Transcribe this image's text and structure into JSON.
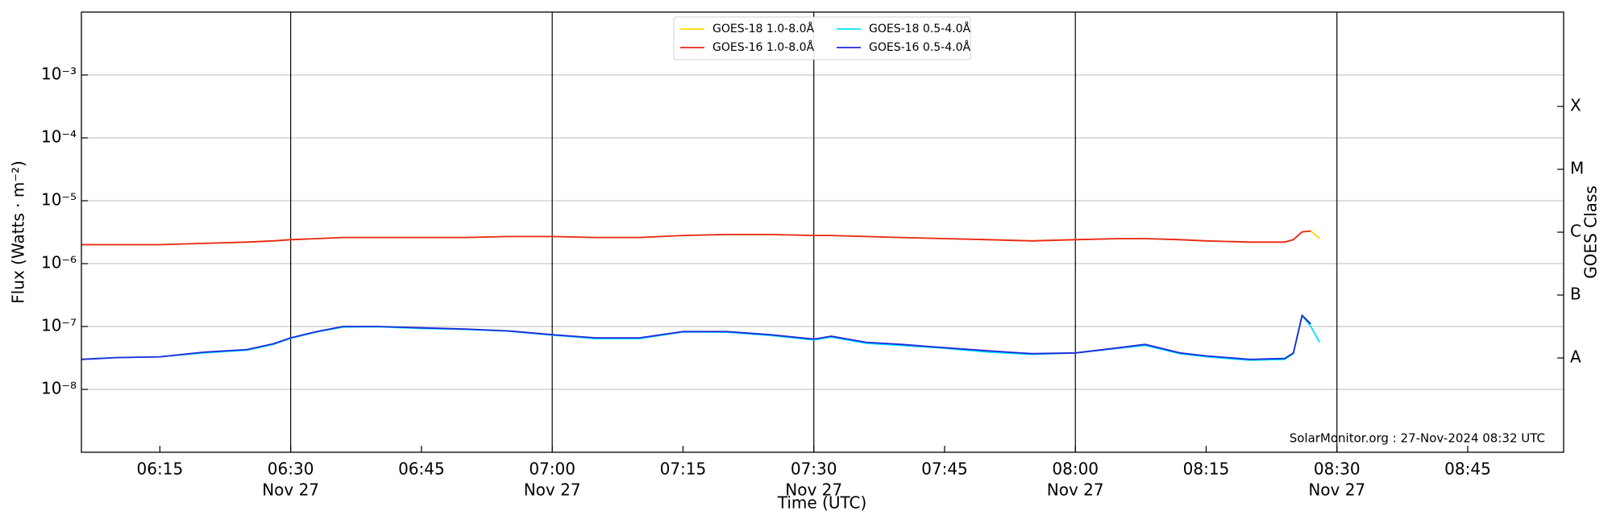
{
  "chart_data": {
    "type": "line",
    "x_label": "Time (UTC)",
    "y_label": "Flux (Watts · m⁻²)",
    "y2_label": "GOES Class",
    "annotation": "SolarMonitor.org : 27-Nov-2024 08:32 UTC",
    "log_y": true,
    "grid": true,
    "legend": "top",
    "xlim": [
      "06:06",
      "08:56"
    ],
    "xticks": [
      "06:15",
      {
        "value": "06:30",
        "label": "06:30",
        "date": "Nov 27"
      },
      "06:45",
      {
        "value": "07:00",
        "label": "07:00",
        "date": "Nov 27"
      },
      "07:15",
      {
        "value": "07:30",
        "label": "07:30",
        "date": "Nov 27"
      },
      "07:45",
      {
        "value": "08:00",
        "label": "08:00",
        "date": "Nov 27"
      },
      "08:15",
      {
        "value": "08:30",
        "label": "08:30",
        "date": "Nov 27"
      },
      "08:45"
    ],
    "ylim": [
      1e-09,
      0.01
    ],
    "yticks": [
      {
        "value": 1e-08,
        "label": "10⁻⁸"
      },
      {
        "value": 1e-07,
        "label": "10⁻⁷"
      },
      {
        "value": 1e-06,
        "label": "10⁻⁶"
      },
      {
        "value": 1e-05,
        "label": "10⁻⁵"
      },
      {
        "value": 0.0001,
        "label": "10⁻⁴"
      },
      {
        "value": 0.001,
        "label": "10⁻³"
      }
    ],
    "y2lim": [
      1e-09,
      0.01
    ],
    "y2ticks": [
      {
        "value": 3.16e-08,
        "label": "A"
      },
      {
        "value": 3.16e-07,
        "label": "B"
      },
      {
        "value": 3.16e-06,
        "label": "C"
      },
      {
        "value": 3.16e-05,
        "label": "M"
      },
      {
        "value": 0.000316,
        "label": "X"
      }
    ],
    "x": [
      "06:06",
      "06:10",
      "06:15",
      "06:20",
      "06:25",
      "06:28",
      "06:30",
      "06:33",
      "06:36",
      "06:40",
      "06:45",
      "06:50",
      "06:55",
      "07:00",
      "07:05",
      "07:10",
      "07:15",
      "07:20",
      "07:25",
      "07:30",
      "07:32",
      "07:36",
      "07:40",
      "07:45",
      "07:50",
      "07:55",
      "08:00",
      "08:05",
      "08:08",
      "08:12",
      "08:15",
      "08:20",
      "08:24",
      "08:25",
      "08:26",
      "08:27",
      "08:28"
    ],
    "series": [
      {
        "name": "GOES-18 1.0-8.0Å",
        "color": "#ffd700",
        "values": [
          2e-06,
          2e-06,
          2e-06,
          2.1e-06,
          2.2e-06,
          2.3e-06,
          2.4e-06,
          2.5e-06,
          2.6e-06,
          2.6e-06,
          2.6e-06,
          2.6e-06,
          2.7e-06,
          2.7e-06,
          2.6e-06,
          2.6e-06,
          2.8e-06,
          2.9e-06,
          2.9e-06,
          2.8e-06,
          2.8e-06,
          2.7e-06,
          2.6e-06,
          2.5e-06,
          2.4e-06,
          2.3e-06,
          2.4e-06,
          2.5e-06,
          2.5e-06,
          2.4e-06,
          2.3e-06,
          2.2e-06,
          2.2e-06,
          2.4e-06,
          3.2e-06,
          3.3e-06,
          2.5e-06
        ]
      },
      {
        "name": "GOES-16 1.0-8.0Å",
        "color": "#e8281d",
        "values": [
          2e-06,
          2e-06,
          2e-06,
          2.1e-06,
          2.2e-06,
          2.3e-06,
          2.4e-06,
          2.5e-06,
          2.6e-06,
          2.6e-06,
          2.6e-06,
          2.6e-06,
          2.7e-06,
          2.7e-06,
          2.6e-06,
          2.6e-06,
          2.8e-06,
          2.9e-06,
          2.9e-06,
          2.8e-06,
          2.8e-06,
          2.7e-06,
          2.6e-06,
          2.5e-06,
          2.4e-06,
          2.3e-06,
          2.4e-06,
          2.5e-06,
          2.5e-06,
          2.4e-06,
          2.3e-06,
          2.2e-06,
          2.2e-06,
          2.4e-06,
          3.2e-06,
          3.3e-06,
          null
        ]
      },
      {
        "name": "GOES-18 0.5-4.0Å",
        "color": "#00e5ff",
        "values": [
          3e-08,
          3.2e-08,
          3.3e-08,
          3.8e-08,
          4.2e-08,
          5.2e-08,
          6.5e-08,
          8.2e-08,
          9.8e-08,
          9.9e-08,
          9.3e-08,
          9e-08,
          8.4e-08,
          7.3e-08,
          6.4e-08,
          6.4e-08,
          8.2e-08,
          8.1e-08,
          7.2e-08,
          6.1e-08,
          6.8e-08,
          5.4e-08,
          5e-08,
          4.5e-08,
          3.9e-08,
          3.6e-08,
          3.8e-08,
          4.5e-08,
          5e-08,
          3.7e-08,
          3.3e-08,
          2.9e-08,
          3e-08,
          3.7e-08,
          1.5e-07,
          1e-07,
          5.6e-08
        ]
      },
      {
        "name": "GOES-16 0.5-4.0Å",
        "color": "#1f2ad8",
        "values": [
          3e-08,
          3.2e-08,
          3.3e-08,
          3.9e-08,
          4.3e-08,
          5.3e-08,
          6.6e-08,
          8.3e-08,
          1e-07,
          1e-07,
          9.5e-08,
          9.1e-08,
          8.5e-08,
          7.4e-08,
          6.6e-08,
          6.6e-08,
          8.3e-08,
          8.3e-08,
          7.4e-08,
          6.3e-08,
          7e-08,
          5.6e-08,
          5.2e-08,
          4.6e-08,
          4.1e-08,
          3.7e-08,
          3.8e-08,
          4.6e-08,
          5.2e-08,
          3.8e-08,
          3.4e-08,
          3e-08,
          3.1e-08,
          3.8e-08,
          1.5e-07,
          1.1e-07,
          null
        ]
      }
    ]
  }
}
